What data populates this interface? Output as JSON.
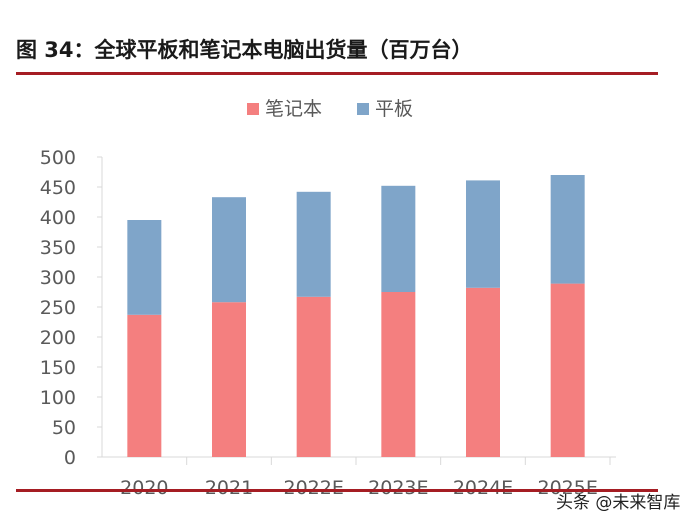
{
  "header": {
    "title": "图 34：全球平板和笔记本电脑出货量（百万台）"
  },
  "watermark": {
    "text": "头条 @未来智库"
  },
  "colors": {
    "notebook": "#f47f7f",
    "tablet": "#7fa5c9",
    "axis": "#d9d9d9",
    "rule": "#a51d23"
  },
  "chart_data": {
    "type": "bar",
    "stacked": true,
    "categories": [
      "2020",
      "2021",
      "2022E",
      "2023E",
      "2024E",
      "2025E"
    ],
    "series": [
      {
        "name": "笔记本",
        "values": [
          237,
          258,
          267,
          275,
          282,
          289
        ]
      },
      {
        "name": "平板",
        "values": [
          158,
          175,
          175,
          177,
          179,
          181
        ]
      }
    ],
    "y_ticks": [
      0,
      50,
      100,
      150,
      200,
      250,
      300,
      350,
      400,
      450,
      500
    ],
    "ylim": [
      0,
      500
    ],
    "grid": false,
    "legend": "top-center"
  }
}
